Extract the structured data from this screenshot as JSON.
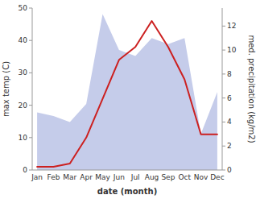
{
  "chart_data": {
    "type": "line",
    "xlabel": "date (month)",
    "ylabel": "max temp (C)",
    "y2label": "med. precipitation (kg/m2)",
    "categories": [
      "Jan",
      "Feb",
      "Mar",
      "Apr",
      "May",
      "Jun",
      "Jul",
      "Aug",
      "Sep",
      "Oct",
      "Nov",
      "Dec"
    ],
    "series": [
      {
        "type": "area",
        "axis": "y2",
        "color": "#c5ccea",
        "values": [
          4.8,
          4.5,
          4.0,
          5.5,
          13.0,
          10.0,
          9.5,
          11.0,
          10.5,
          11.0,
          3.0,
          6.5
        ]
      },
      {
        "type": "line",
        "color": "#cc2020",
        "values": [
          1,
          1,
          2,
          10,
          22,
          34,
          38,
          46,
          38,
          28,
          11,
          11
        ]
      }
    ],
    "ylim": [
      0,
      50
    ],
    "yticks": [
      0,
      10,
      20,
      30,
      40,
      50
    ],
    "y2lim": [
      0,
      13.5
    ],
    "y2ticks": [
      0,
      2,
      4,
      6,
      8,
      10,
      12
    ],
    "grid": false
  }
}
